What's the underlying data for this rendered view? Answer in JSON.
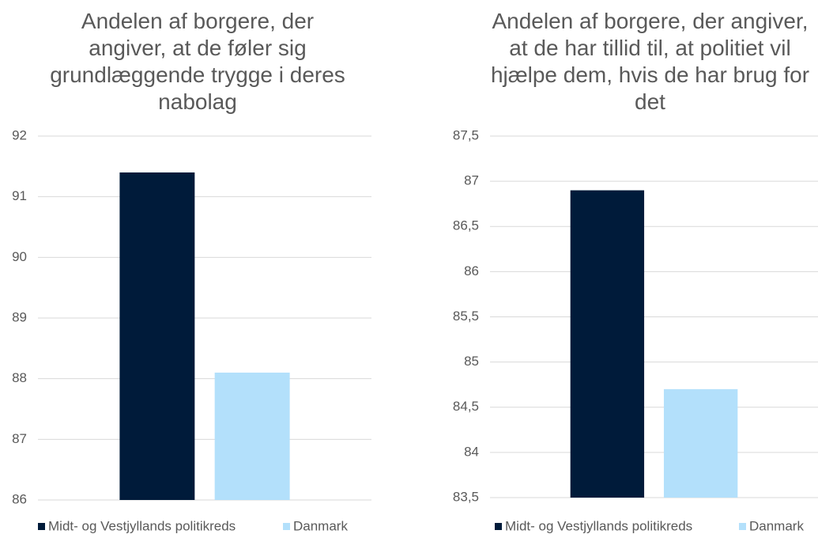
{
  "chart_data": [
    {
      "type": "bar",
      "title": "Andelen af borgere, der angiver, at de føler sig grundlæggende trygge i deres nabolag",
      "categories": [
        null
      ],
      "series": [
        {
          "name": "Midt- og Vestjyllands politikreds",
          "color": "#001b3a",
          "values": [
            91.4
          ]
        },
        {
          "name": "Danmark",
          "color": "#b3e0fb",
          "values": [
            88.1
          ]
        }
      ],
      "ylim": [
        86,
        92
      ],
      "yticks": [
        86,
        87,
        88,
        89,
        90,
        91,
        92
      ],
      "grid": true,
      "legend": "bottom"
    },
    {
      "type": "bar",
      "title": "Andelen af borgere, der angiver, at de har tillid til, at politiet vil hjælpe dem, hvis de har brug for det",
      "categories": [
        null
      ],
      "series": [
        {
          "name": "Midt- og Vestjyllands politikreds",
          "color": "#001b3a",
          "values": [
            86.9
          ]
        },
        {
          "name": "Danmark",
          "color": "#b3e0fb",
          "values": [
            84.7
          ]
        }
      ],
      "ylim": [
        83.5,
        87.5
      ],
      "yticks": [
        {
          "value": 83.5,
          "label": "83,5"
        },
        84,
        {
          "value": 84.5,
          "label": "84,5"
        },
        85,
        {
          "value": 85.5,
          "label": "85,5"
        },
        86,
        {
          "value": 86.5,
          "label": "86,5"
        },
        87,
        {
          "value": 87.5,
          "label": "87,5"
        }
      ],
      "grid": true,
      "legend": "bottom"
    }
  ]
}
